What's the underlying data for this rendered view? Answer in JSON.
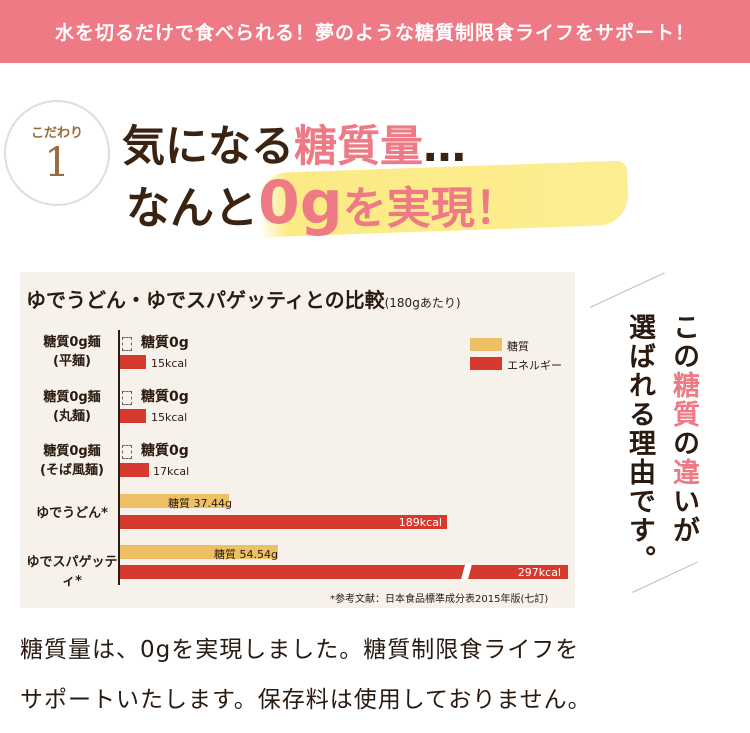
{
  "banner": {
    "text": "水を切るだけで食べられる！夢のような糖質制限食ライフをサポート！"
  },
  "badge": {
    "label": "こだわり",
    "number": "1"
  },
  "headline": {
    "line1_a": "気になる",
    "line1_b": "糖質量",
    "line1_c": "…",
    "line2_a": "なんと",
    "line2_b": "0g",
    "line2_c": "を実現！"
  },
  "side_text": {
    "col1": "この",
    "col1_pink": "糖質",
    "col1_b": "の",
    "col1_pink2": "違",
    "col1_c": "いが",
    "col2": "選ばれる理由です。"
  },
  "chart_data": {
    "type": "bar",
    "title": "ゆでうどん・ゆでスパゲッティとの比較",
    "title_note": "(180gあたり)",
    "legend": [
      "糖質",
      "エネルギー"
    ],
    "categories": [
      "糖質0g麺\n(平麺)",
      "糖質0g麺\n(丸麺)",
      "糖質0g麺\n(そば風麺)",
      "ゆでうどん*",
      "ゆでスパゲッティ*"
    ],
    "series": [
      {
        "name": "糖質",
        "unit": "g",
        "values": [
          0,
          0,
          0,
          37.44,
          54.54
        ],
        "labels": [
          "糖質0g",
          "糖質0g",
          "糖質0g",
          "糖質 37.44g",
          "糖質 54.54g"
        ],
        "color": "#edc066"
      },
      {
        "name": "エネルギー",
        "unit": "kcal",
        "values": [
          15,
          15,
          17,
          189,
          297
        ],
        "labels": [
          "15kcal",
          "15kcal",
          "17kcal",
          "189kcal",
          "297kcal"
        ],
        "color": "#d63a2f"
      }
    ],
    "axis_break_on": "ゆでスパゲッティ* エネルギー",
    "reference": "*参考文献：日本食品標準成分表2015年版(七訂)"
  },
  "body_text": {
    "line1": "糖質量は、0gを実現しました。糖質制限食ライフを",
    "line2": "サポートいたします。保存料は使用しておりません。"
  }
}
